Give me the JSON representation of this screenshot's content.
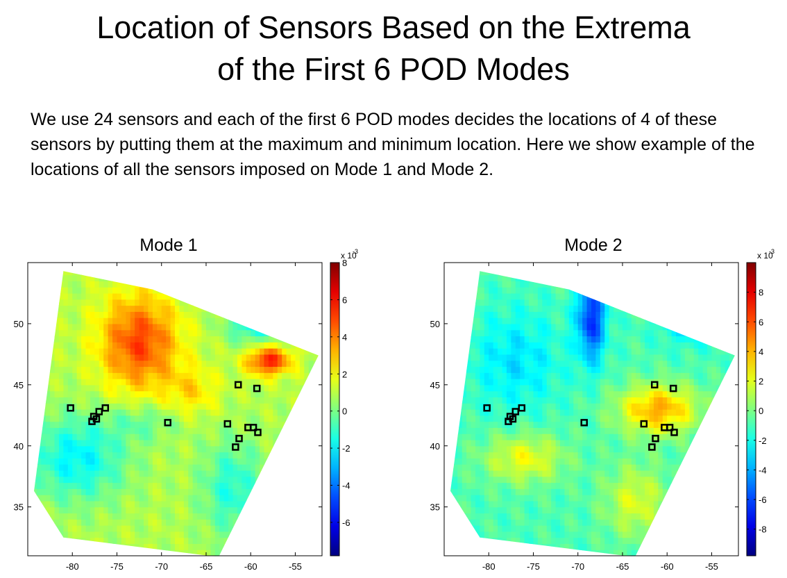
{
  "slide": {
    "title_line1": "Location of Sensors Based on the Extrema",
    "title_line2": "of the First 6 POD Modes",
    "body": "We use 24 sensors and each of the first 6 POD modes decides the locations of 4 of these sensors by putting them at the maximum and minimum location. Here we show example of the locations of all the sensors imposed on Mode 1 and Mode 2."
  },
  "chart_data": [
    {
      "type": "heatmap",
      "title": "Mode 1",
      "xlim": [
        -85,
        -52
      ],
      "ylim": [
        31,
        55
      ],
      "xticks": [
        -80,
        -75,
        -70,
        -65,
        -60,
        -55
      ],
      "yticks": [
        35,
        40,
        45,
        50
      ],
      "colorbar": {
        "multiplier_label": "x 10",
        "multiplier_exp": "-3",
        "range": [
          -7.8,
          8
        ],
        "ticks": [
          -6,
          -4,
          -2,
          0,
          2,
          4,
          6,
          8
        ]
      },
      "sensors": [
        {
          "x": -80.2,
          "y": 43.1
        },
        {
          "x": -77.6,
          "y": 42.4
        },
        {
          "x": -77.8,
          "y": 42.0
        },
        {
          "x": -77.3,
          "y": 42.2
        },
        {
          "x": -77.0,
          "y": 42.8
        },
        {
          "x": -76.3,
          "y": 43.1
        },
        {
          "x": -69.3,
          "y": 41.9
        },
        {
          "x": -62.6,
          "y": 41.8
        },
        {
          "x": -61.4,
          "y": 45.0
        },
        {
          "x": -59.3,
          "y": 44.7
        },
        {
          "x": -60.3,
          "y": 41.5
        },
        {
          "x": -59.7,
          "y": 41.5
        },
        {
          "x": -59.2,
          "y": 41.1
        },
        {
          "x": -61.3,
          "y": 40.6
        },
        {
          "x": -61.7,
          "y": 39.9
        }
      ]
    },
    {
      "type": "heatmap",
      "title": "Mode 2",
      "xlim": [
        -85,
        -52
      ],
      "ylim": [
        31,
        55
      ],
      "xticks": [
        -80,
        -75,
        -70,
        -65,
        -60,
        -55
      ],
      "yticks": [
        35,
        40,
        45,
        50
      ],
      "colorbar": {
        "multiplier_label": "x 10",
        "multiplier_exp": "-3",
        "range": [
          -9.8,
          10
        ],
        "ticks": [
          -8,
          -6,
          -4,
          -2,
          0,
          2,
          4,
          6,
          8
        ]
      },
      "sensors": [
        {
          "x": -80.2,
          "y": 43.1
        },
        {
          "x": -77.6,
          "y": 42.4
        },
        {
          "x": -77.8,
          "y": 42.0
        },
        {
          "x": -77.3,
          "y": 42.2
        },
        {
          "x": -77.0,
          "y": 42.8
        },
        {
          "x": -76.3,
          "y": 43.1
        },
        {
          "x": -69.3,
          "y": 41.9
        },
        {
          "x": -62.6,
          "y": 41.8
        },
        {
          "x": -61.4,
          "y": 45.0
        },
        {
          "x": -59.3,
          "y": 44.7
        },
        {
          "x": -60.3,
          "y": 41.5
        },
        {
          "x": -59.7,
          "y": 41.5
        },
        {
          "x": -59.2,
          "y": 41.1
        },
        {
          "x": -61.3,
          "y": 40.6
        },
        {
          "x": -61.7,
          "y": 39.9
        }
      ]
    }
  ]
}
